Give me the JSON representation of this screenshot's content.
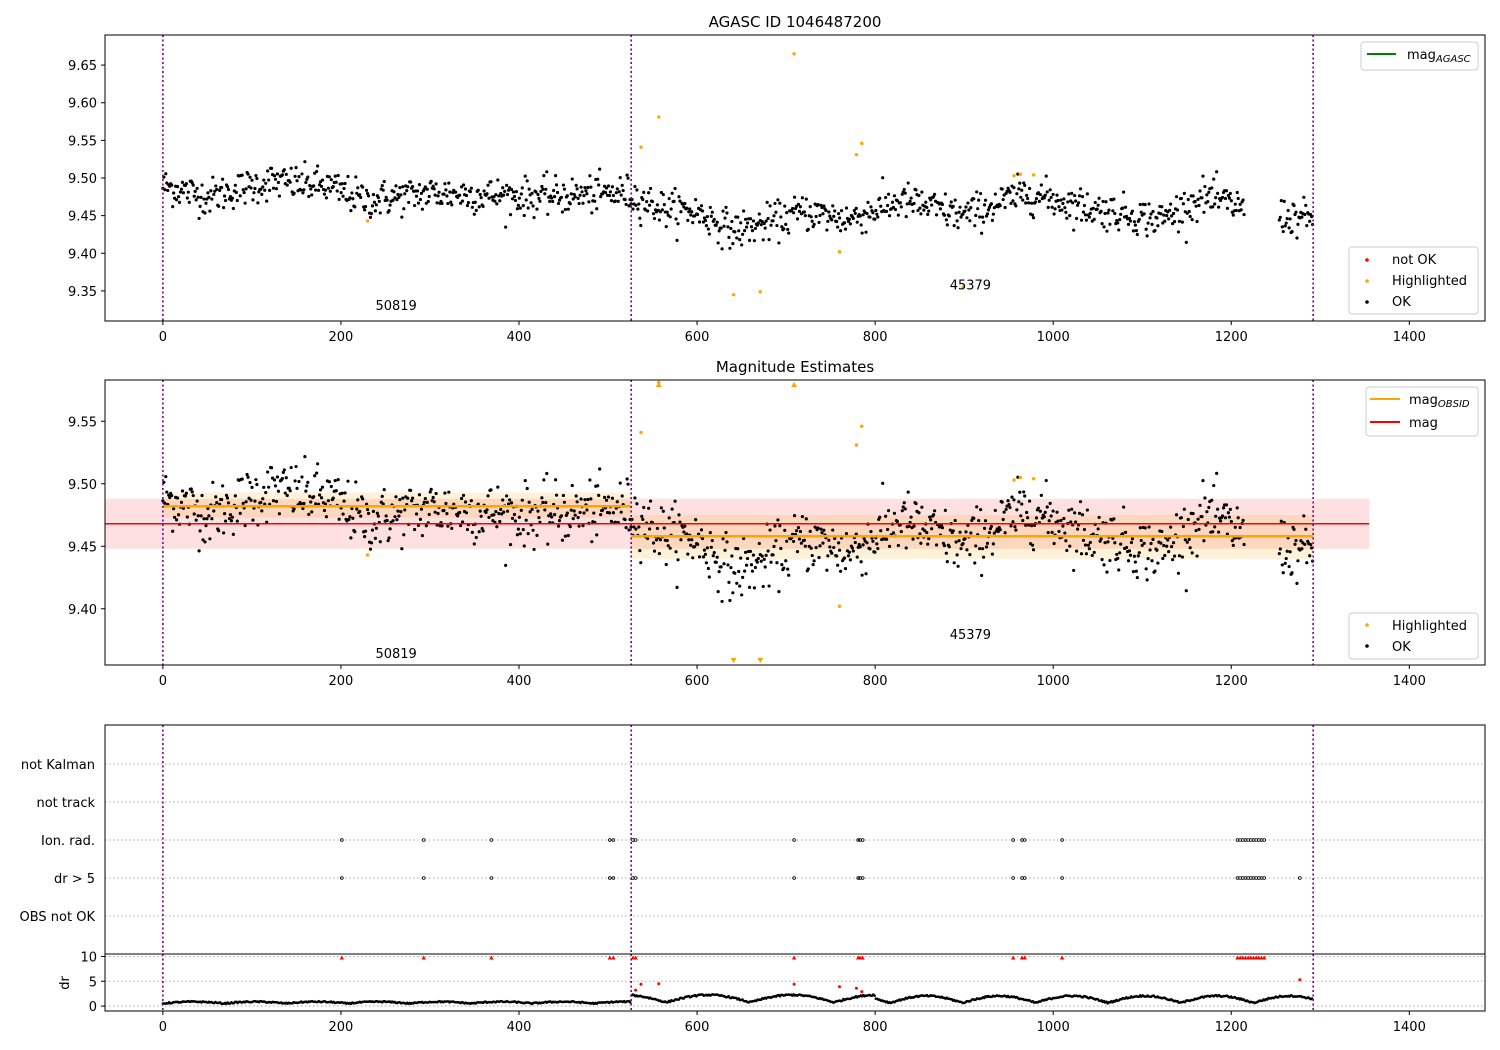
{
  "chart_data": [
    {
      "type": "scatter",
      "title": "AGASC ID 1046487200",
      "xlim": [
        -65,
        1485
      ],
      "ylim": [
        9.31,
        9.69
      ],
      "xticks": [
        0,
        200,
        400,
        600,
        800,
        1000,
        1200,
        1400
      ],
      "yticks": [
        9.35,
        9.4,
        9.45,
        9.5,
        9.55,
        9.6,
        9.65
      ],
      "obs_boundaries": [
        0,
        526,
        1292
      ],
      "obs_labels": [
        {
          "text": "50819",
          "x": 262,
          "y": 9.33
        },
        {
          "text": "45379",
          "x": 907,
          "y": 9.357
        }
      ],
      "legend_upper": {
        "placement": "upper right",
        "entries": [
          {
            "label": "mag",
            "sub": "AGASC",
            "color": "#008000",
            "kind": "line"
          }
        ]
      },
      "legend_lower": {
        "placement": "lower right",
        "entries": [
          {
            "label": "not OK",
            "color": "#ff0000",
            "kind": "dot"
          },
          {
            "label": "Highlighted",
            "color": "#ffa500",
            "kind": "dot"
          },
          {
            "label": "OK",
            "color": "#000000",
            "kind": "dot"
          }
        ]
      },
      "highlighted_points": [
        {
          "x": 230,
          "y": 9.443
        },
        {
          "x": 537,
          "y": 9.541
        },
        {
          "x": 557,
          "y": 9.581
        },
        {
          "x": 641,
          "y": 9.345
        },
        {
          "x": 671,
          "y": 9.349
        },
        {
          "x": 709,
          "y": 9.665
        },
        {
          "x": 760,
          "y": 9.402
        },
        {
          "x": 779,
          "y": 9.531
        },
        {
          "x": 785,
          "y": 9.546
        },
        {
          "x": 899,
          "y": 9.355
        },
        {
          "x": 956,
          "y": 9.503
        },
        {
          "x": 963,
          "y": 9.505
        },
        {
          "x": 978,
          "y": 9.504
        }
      ],
      "ok_trend": [
        {
          "x": 0,
          "y": 9.49
        },
        {
          "x": 50,
          "y": 9.475
        },
        {
          "x": 120,
          "y": 9.495
        },
        {
          "x": 180,
          "y": 9.49
        },
        {
          "x": 230,
          "y": 9.47
        },
        {
          "x": 300,
          "y": 9.48
        },
        {
          "x": 420,
          "y": 9.475
        },
        {
          "x": 520,
          "y": 9.48
        },
        {
          "x": 560,
          "y": 9.46
        },
        {
          "x": 600,
          "y": 9.455
        },
        {
          "x": 640,
          "y": 9.43
        },
        {
          "x": 680,
          "y": 9.44
        },
        {
          "x": 720,
          "y": 9.455
        },
        {
          "x": 770,
          "y": 9.445
        },
        {
          "x": 830,
          "y": 9.47
        },
        {
          "x": 900,
          "y": 9.45
        },
        {
          "x": 970,
          "y": 9.48
        },
        {
          "x": 1040,
          "y": 9.46
        },
        {
          "x": 1120,
          "y": 9.445
        },
        {
          "x": 1170,
          "y": 9.475
        },
        {
          "x": 1215,
          "y": 9.46
        },
        {
          "x": 1250,
          "y": 9.45
        },
        {
          "x": 1292,
          "y": 9.445
        }
      ],
      "gaps": [
        [
          1215,
          1253
        ]
      ],
      "ok_scatter_sd": 0.012
    },
    {
      "type": "scatter",
      "title": "Magnitude Estimates",
      "xlim": [
        -65,
        1485
      ],
      "ylim": [
        9.355,
        9.583
      ],
      "xticks": [
        0,
        200,
        400,
        600,
        800,
        1000,
        1200,
        1400
      ],
      "yticks": [
        9.4,
        9.45,
        9.5,
        9.55
      ],
      "obs_boundaries": [
        0,
        526,
        1292
      ],
      "obs_labels": [
        {
          "text": "50819",
          "x": 262,
          "y": 9.364
        },
        {
          "text": "45379",
          "x": 907,
          "y": 9.379
        }
      ],
      "mag": {
        "value": 9.468,
        "band": [
          9.448,
          9.488
        ],
        "x_range": [
          -65,
          1355
        ]
      },
      "mag_obsid": [
        {
          "x_range": [
            0,
            526
          ],
          "value": 9.482,
          "band": [
            9.473,
            9.493
          ]
        },
        {
          "x_range": [
            526,
            1292
          ],
          "value": 9.458,
          "band": [
            9.44,
            9.475
          ]
        }
      ],
      "legend_upper": {
        "placement": "upper right",
        "entries": [
          {
            "label": "mag",
            "sub": "OBSID",
            "color": "#ffa500",
            "kind": "line"
          },
          {
            "label": "mag",
            "sub": "",
            "color": "#ff0000",
            "kind": "line"
          }
        ]
      },
      "legend_lower": {
        "placement": "lower right",
        "entries": [
          {
            "label": "Highlighted",
            "color": "#ffa500",
            "kind": "dot"
          },
          {
            "label": "OK",
            "color": "#000000",
            "kind": "dot"
          }
        ]
      },
      "out_of_range_markers": [
        {
          "x": 557,
          "dir": "up"
        },
        {
          "x": 709,
          "dir": "up"
        },
        {
          "x": 641,
          "dir": "down"
        },
        {
          "x": 671,
          "dir": "down"
        }
      ]
    },
    {
      "type": "scatter",
      "title": "",
      "xlim": [
        -65,
        1485
      ],
      "categories": [
        "not Kalman",
        "not track",
        "Ion. rad.",
        "dr > 5",
        "OBS not OK"
      ],
      "flag_points": {
        "Ion. rad.": [
          201,
          293,
          369,
          502,
          506,
          528,
          531,
          709,
          781,
          783,
          786,
          955,
          965,
          968,
          1010,
          1207,
          1210,
          1213,
          1216,
          1219,
          1222,
          1225,
          1228,
          1231,
          1234,
          1237
        ],
        "dr > 5": [
          201,
          293,
          369,
          502,
          506,
          528,
          531,
          709,
          781,
          783,
          786,
          955,
          965,
          968,
          1010,
          1207,
          1210,
          1213,
          1216,
          1219,
          1222,
          1225,
          1228,
          1231,
          1234,
          1237,
          1277
        ]
      }
    },
    {
      "type": "scatter",
      "title": "",
      "xlim": [
        -65,
        1485
      ],
      "ylim": [
        -1,
        10.5
      ],
      "xticks": [
        0,
        200,
        400,
        600,
        800,
        1000,
        1200,
        1400
      ],
      "yticks": [
        0,
        5,
        10
      ],
      "ylabel": "dr",
      "dr_clipped_points": [
        201,
        293,
        369,
        502,
        506,
        528,
        531,
        709,
        781,
        783,
        786,
        955,
        965,
        968,
        1010,
        1207,
        1210,
        1213,
        1216,
        1219,
        1222,
        1225,
        1228,
        1231,
        1234,
        1237
      ],
      "dr_red_points": [
        {
          "x": 531,
          "y": 3.2
        },
        {
          "x": 537,
          "y": 4.4
        },
        {
          "x": 557,
          "y": 4.5
        },
        {
          "x": 709,
          "y": 4.4
        },
        {
          "x": 760,
          "y": 3.9
        },
        {
          "x": 779,
          "y": 3.6
        },
        {
          "x": 785,
          "y": 2.9
        },
        {
          "x": 1277,
          "y": 5.3
        }
      ]
    }
  ]
}
